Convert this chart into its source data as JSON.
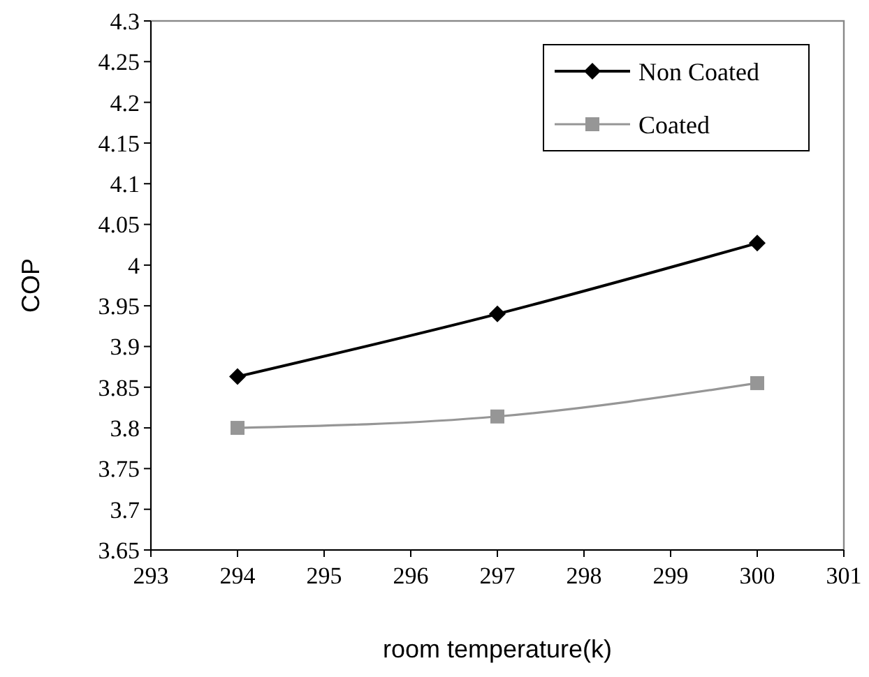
{
  "chart_data": {
    "type": "line",
    "xlabel": "room temperature(k)",
    "ylabel": "COP",
    "xlim": [
      293,
      301
    ],
    "xticks": [
      293,
      294,
      295,
      296,
      297,
      298,
      299,
      300,
      301
    ],
    "ylim": [
      3.65,
      4.3
    ],
    "yticks": [
      3.65,
      3.7,
      3.75,
      3.8,
      3.85,
      3.9,
      3.95,
      4,
      4.05,
      4.1,
      4.15,
      4.2,
      4.25,
      4.3
    ],
    "grid": false,
    "legend": "top right",
    "series": [
      {
        "name": "Non Coated",
        "color": "#000000",
        "marker": "diamond",
        "x": [
          294,
          297,
          300
        ],
        "values": [
          3.863,
          3.94,
          4.027
        ]
      },
      {
        "name": "Coated",
        "color": "#969696",
        "marker": "square",
        "x": [
          294,
          297,
          300
        ],
        "values": [
          3.8,
          3.814,
          3.855
        ]
      }
    ]
  }
}
